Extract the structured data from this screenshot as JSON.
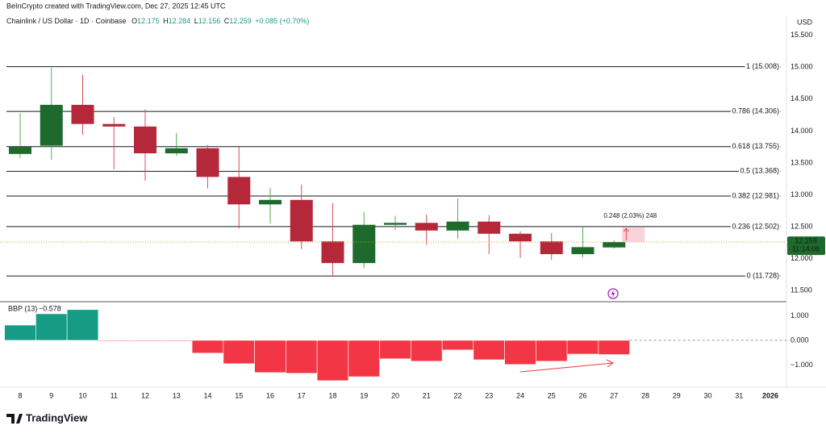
{
  "header": {
    "attribution": "BeInCrypto created with TradingView.com, Dec 27, 2025 12:45 UTC",
    "logo": "TradingView"
  },
  "chart_data": [
    {
      "type": "candlestick",
      "title": "Chainlink / US Dollar · 1D · Coinbase",
      "legend_ohlc": [
        {
          "label": "O",
          "value": 12.175
        },
        {
          "label": "H",
          "value": 12.284
        },
        {
          "label": "L",
          "value": 12.156
        },
        {
          "label": "C",
          "value": 12.259
        }
      ],
      "change": "+0.085 (+0.70%)",
      "currency": "USD",
      "categories": [
        "8",
        "9",
        "10",
        "11",
        "12",
        "13",
        "14",
        "15",
        "16",
        "17",
        "18",
        "19",
        "20",
        "21",
        "22",
        "23",
        "24",
        "25",
        "26",
        "27",
        "28",
        "29",
        "30",
        "31",
        "2026"
      ],
      "open": [
        13.64,
        13.77,
        14.41,
        14.11,
        14.07,
        13.65,
        13.73,
        13.28,
        12.85,
        12.92,
        12.27,
        11.93,
        12.53,
        12.56,
        12.44,
        12.58,
        12.39,
        12.27,
        12.07,
        12.175,
        null,
        null,
        null,
        null,
        null
      ],
      "high": [
        14.28,
        14.99,
        14.88,
        14.22,
        14.34,
        13.97,
        13.78,
        13.75,
        13.11,
        13.16,
        12.87,
        12.73,
        12.67,
        12.69,
        12.94,
        12.68,
        12.43,
        12.4,
        12.5,
        12.284,
        null,
        null,
        null,
        null,
        null
      ],
      "low": [
        13.58,
        13.55,
        13.94,
        13.4,
        13.22,
        13.61,
        13.1,
        12.47,
        12.55,
        12.15,
        11.73,
        11.85,
        12.45,
        12.22,
        12.31,
        12.07,
        12.01,
        11.98,
        12.02,
        12.156,
        null,
        null,
        null,
        null,
        null
      ],
      "close": [
        13.75,
        14.41,
        14.11,
        14.07,
        13.65,
        13.73,
        13.28,
        12.85,
        12.92,
        12.27,
        11.93,
        12.53,
        12.56,
        12.44,
        12.58,
        12.39,
        12.27,
        12.07,
        12.18,
        12.259,
        null,
        null,
        null,
        null,
        null
      ],
      "up_color": "#1e6a2c",
      "down_color": "#b5283a",
      "up_wick": "#4caf50",
      "down_wick": "#d94d5a",
      "ylim": [
        11.35,
        15.8
      ],
      "yticks": [
        {
          "value": 15.5,
          "label": "15.500"
        },
        {
          "value": 15,
          "label": "15.000"
        },
        {
          "value": 14.5,
          "label": "14.500"
        },
        {
          "value": 14,
          "label": "14.000"
        },
        {
          "value": 13.5,
          "label": "13.500"
        },
        {
          "value": 13,
          "label": "13.000"
        },
        {
          "value": 12.5,
          "label": "12.500"
        },
        {
          "value": 12,
          "label": "12.000"
        },
        {
          "value": 11.5,
          "label": "11.500"
        }
      ],
      "fib_levels": [
        {
          "value": 15.008,
          "label": "1 (15.008)"
        },
        {
          "value": 14.306,
          "label": "0.786 (14.306)"
        },
        {
          "value": 13.755,
          "label": "0.618 (13.755)"
        },
        {
          "value": 13.368,
          "label": "0.5 (13.368)"
        },
        {
          "value": 12.981,
          "label": "0.382 (12.981)"
        },
        {
          "value": 12.502,
          "label": "0.236 (12.502)"
        },
        {
          "value": 11.728,
          "label": "0 (11.728)"
        }
      ],
      "countdown": "11:14:06",
      "measure_label": "0.248 (2.03%) 248"
    },
    {
      "type": "bar",
      "title": "BBP (13)",
      "values": [
        0.62,
        1.08,
        1.25,
        -0.01,
        -0.01,
        -0.01,
        -0.52,
        -0.95,
        -1.31,
        -1.34,
        -1.64,
        -1.48,
        -0.75,
        -0.85,
        -0.39,
        -0.79,
        -0.98,
        -0.85,
        -0.56,
        -0.578,
        null,
        null,
        null,
        null,
        null
      ],
      "value_labels": [
        null,
        null,
        null,
        null,
        null,
        null,
        null,
        null,
        null,
        null,
        null,
        null,
        null,
        null,
        null,
        null,
        null,
        null,
        null,
        "−0.578",
        null,
        null,
        null,
        null,
        null
      ],
      "pos_color": "#169c85",
      "neg_color": "#f23645",
      "ylim": [
        -1.84,
        1.44
      ],
      "yticks": [
        {
          "value": 1,
          "label": "1.000"
        },
        {
          "value": 0,
          "label": "0.000"
        },
        {
          "value": -1,
          "label": "−1.000"
        }
      ]
    }
  ]
}
